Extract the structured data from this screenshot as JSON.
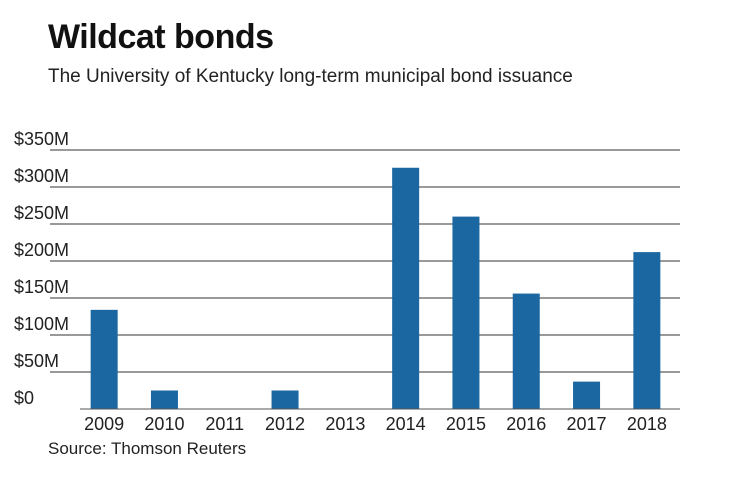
{
  "chart_data": {
    "type": "bar",
    "title": "Wildcat bonds",
    "subtitle": "The University of Kentucky long-term municipal bond issuance",
    "source": "Source: Thomson Reuters",
    "categories": [
      "2009",
      "2010",
      "2011",
      "2012",
      "2013",
      "2014",
      "2015",
      "2016",
      "2017",
      "2018"
    ],
    "values": [
      134,
      25,
      0,
      25,
      0,
      326,
      260,
      156,
      37,
      212
    ],
    "unit": "$M",
    "ylim": [
      0,
      350
    ],
    "yticks": [
      0,
      50,
      100,
      150,
      200,
      250,
      300,
      350
    ],
    "ytick_labels": [
      "$0",
      "$50M",
      "$100M",
      "$150M",
      "$200M",
      "$250M",
      "$300M",
      "$350M"
    ],
    "grid": true,
    "bar_color": "#1b67a1"
  }
}
